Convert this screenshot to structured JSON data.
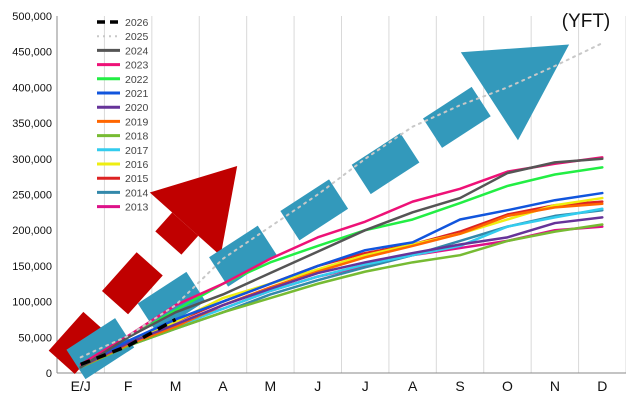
{
  "chart_data": {
    "type": "line",
    "title": "(YFT)",
    "categories": [
      "E/J",
      "F",
      "M",
      "A",
      "M",
      "J",
      "J",
      "A",
      "S",
      "O",
      "N",
      "D"
    ],
    "ylim": [
      0,
      500000
    ],
    "yticks": [
      0,
      50000,
      100000,
      150000,
      200000,
      250000,
      300000,
      350000,
      400000,
      450000,
      500000
    ],
    "ytick_labels": [
      "0",
      "50,000",
      "100,000",
      "150,000",
      "200,000",
      "250,000",
      "300,000",
      "350,000",
      "400,000",
      "450,000",
      "500,000"
    ],
    "grid": "vertical",
    "legend_position": "top-left",
    "series": [
      {
        "name": "2026",
        "color": "#000000",
        "style": "dashed-bold",
        "values": [
          12000,
          38000,
          75000,
          null,
          null,
          null,
          null,
          null,
          null,
          null,
          null,
          null
        ]
      },
      {
        "name": "2025",
        "color": "#c8c8c8",
        "style": "dotted",
        "values": [
          22000,
          52000,
          95000,
          160000,
          205000,
          250000,
          300000,
          345000,
          375000,
          400000,
          430000,
          462000
        ]
      },
      {
        "name": "2024",
        "color": "#555555",
        "style": "solid",
        "values": [
          8000,
          50000,
          85000,
          110000,
          140000,
          170000,
          200000,
          225000,
          245000,
          280000,
          295000,
          300000
        ]
      },
      {
        "name": "2023",
        "color": "#ee1177",
        "style": "solid",
        "values": [
          12000,
          52000,
          95000,
          125000,
          160000,
          190000,
          212000,
          240000,
          258000,
          282000,
          293000,
          302000
        ]
      },
      {
        "name": "2022",
        "color": "#22ee44",
        "style": "solid",
        "values": [
          10000,
          50000,
          88000,
          125000,
          155000,
          178000,
          200000,
          215000,
          238000,
          262000,
          278000,
          288000
        ]
      },
      {
        "name": "2021",
        "color": "#1155dd",
        "style": "solid",
        "values": [
          10000,
          45000,
          75000,
          100000,
          125000,
          150000,
          172000,
          183000,
          215000,
          228000,
          242000,
          252000
        ]
      },
      {
        "name": "2020",
        "color": "#663399",
        "style": "solid",
        "values": [
          9000,
          42000,
          68000,
          95000,
          118000,
          140000,
          155000,
          168000,
          180000,
          190000,
          210000,
          218000
        ]
      },
      {
        "name": "2019",
        "color": "#ff6600",
        "style": "solid",
        "values": [
          9000,
          40000,
          65000,
          95000,
          120000,
          142000,
          162000,
          178000,
          195000,
          220000,
          232000,
          237000
        ]
      },
      {
        "name": "2018",
        "color": "#77bb33",
        "style": "solid",
        "values": [
          8000,
          38000,
          62000,
          85000,
          105000,
          125000,
          142000,
          155000,
          165000,
          185000,
          198000,
          208000
        ]
      },
      {
        "name": "2017",
        "color": "#33ccee",
        "style": "solid",
        "values": [
          8000,
          40000,
          65000,
          90000,
          115000,
          135000,
          152000,
          165000,
          178000,
          205000,
          218000,
          230000
        ]
      },
      {
        "name": "2016",
        "color": "#eeee11",
        "style": "solid",
        "values": [
          10000,
          43000,
          72000,
          105000,
          125000,
          145000,
          165000,
          180000,
          195000,
          215000,
          235000,
          245000
        ]
      },
      {
        "name": "2015",
        "color": "#dd2222",
        "style": "solid",
        "values": [
          10000,
          44000,
          72000,
          100000,
          125000,
          150000,
          168000,
          180000,
          198000,
          222000,
          235000,
          240000
        ]
      },
      {
        "name": "2014",
        "color": "#3388aa",
        "style": "solid",
        "values": [
          8000,
          38000,
          62000,
          85000,
          110000,
          130000,
          148000,
          165000,
          185000,
          205000,
          220000,
          228000
        ]
      },
      {
        "name": "2013",
        "color": "#dd1188",
        "style": "solid",
        "values": [
          10000,
          42000,
          68000,
          90000,
          115000,
          135000,
          150000,
          165000,
          175000,
          185000,
          200000,
          205000
        ]
      }
    ],
    "annotations": [
      {
        "shape": "dashed-arrow",
        "color": "#c00000",
        "from": [
          0,
          15000
        ],
        "to": [
          3.3,
          290000
        ]
      },
      {
        "shape": "dashed-arrow",
        "color": "#3399bb",
        "from": [
          0.3,
          12000
        ],
        "to": [
          10.3,
          460000
        ]
      }
    ]
  }
}
